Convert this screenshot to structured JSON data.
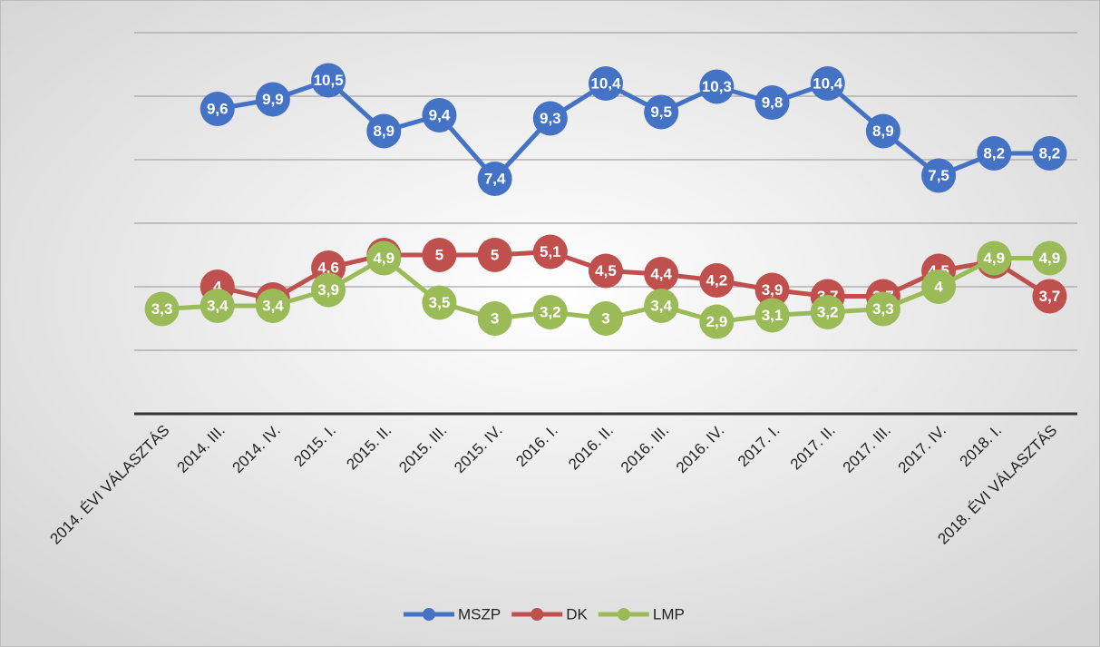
{
  "chart_data": {
    "type": "line",
    "categories": [
      "2014. ÉVI VÁLASZTÁS",
      "2014. III.",
      "2014. IV.",
      "2015. I.",
      "2015. II.",
      "2015. III.",
      "2015. IV.",
      "2016. I.",
      "2016. II.",
      "2016. III.",
      "2016. IV.",
      "2017. I.",
      "2017. II.",
      "2017. III.",
      "2017. IV.",
      "2018. I.",
      "2018. ÉVI VÁLASZTÁS"
    ],
    "series": [
      {
        "name": "MSZP",
        "color": "#4472c4",
        "values": [
          null,
          9.6,
          9.9,
          10.5,
          8.9,
          9.4,
          7.4,
          9.3,
          10.4,
          9.5,
          10.3,
          9.8,
          10.4,
          8.9,
          7.5,
          8.2,
          8.2
        ],
        "value_labels": [
          null,
          "9,6",
          "9,9",
          "10,5",
          "8,9",
          "9,4",
          "7,4",
          "9,3",
          "10,4",
          "9,5",
          "10,3",
          "9,8",
          "10,4",
          "8,9",
          "7,5",
          "8,2",
          "8,2"
        ]
      },
      {
        "name": "DK",
        "color": "#c0504d",
        "values": [
          null,
          4,
          3.6,
          4.6,
          5,
          5,
          5,
          5.1,
          4.5,
          4.4,
          4.2,
          3.9,
          3.7,
          3.7,
          4.5,
          4.8,
          3.7
        ],
        "value_labels": [
          null,
          "4",
          "3,6",
          "4,6",
          "5",
          "5",
          "5",
          "5,1",
          "4,5",
          "4,4",
          "4,2",
          "3,9",
          "3,7",
          "3,7",
          "4,5",
          "4,8",
          "3,7"
        ]
      },
      {
        "name": "LMP",
        "color": "#9bbb59",
        "values": [
          3.3,
          3.4,
          3.4,
          3.9,
          4.9,
          3.5,
          3,
          3.2,
          3,
          3.4,
          2.9,
          3.1,
          3.2,
          3.3,
          4,
          4.9,
          4.9
        ],
        "value_labels": [
          "3,3",
          "3,4",
          "3,4",
          "3,9",
          "4,9",
          "3,5",
          "3",
          "3,2",
          "3",
          "3,4",
          "2,9",
          "3,1",
          "3,2",
          "3,3",
          "4",
          "4,9",
          "4,9"
        ]
      }
    ],
    "ylim": [
      0,
      12
    ],
    "yticks": [
      0,
      2,
      4,
      6,
      8,
      10,
      12
    ],
    "grid": true,
    "legend": "bottom"
  }
}
